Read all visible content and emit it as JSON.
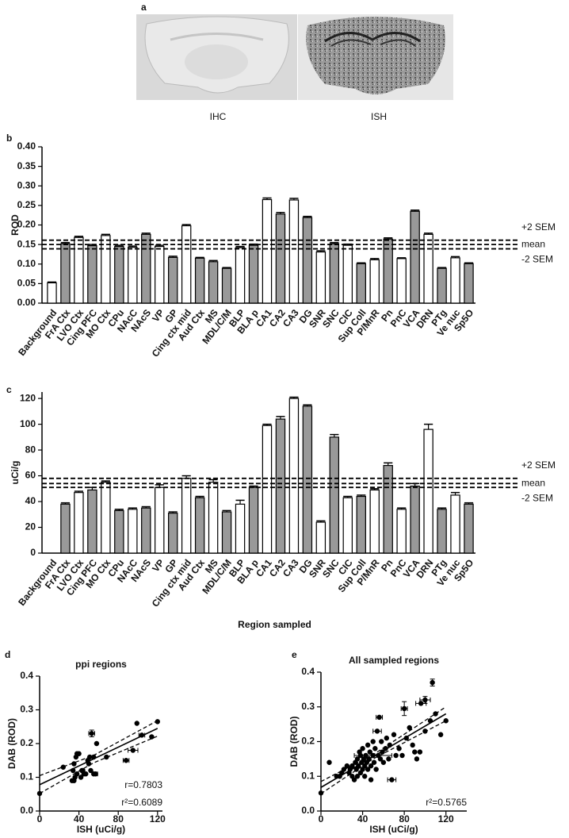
{
  "panel_a": {
    "label": "a",
    "captions": [
      "IHC",
      "ISH"
    ]
  },
  "chart_data": [
    {
      "type": "bar",
      "panel": "b",
      "ylabel": "ROD",
      "categories": [
        "Background",
        "FrA Ctx",
        "LVO Ctx",
        "Cing PFC",
        "MO Ctx",
        "CPu",
        "NAcC",
        "NAcS",
        "VP",
        "GP",
        "Cing ctx mid",
        "Aud Ctx",
        "MS",
        "MDL/C/M",
        "BLP",
        "BLA p",
        "CA1",
        "CA2",
        "CA3",
        "DG",
        "SNR",
        "SNC",
        "CIC",
        "Sup Coll",
        "P/MnR",
        "Pn",
        "PnC",
        "VCA",
        "DRN",
        "PTg",
        "Ve nuc",
        "Sp5O"
      ],
      "values": [
        0.052,
        0.152,
        0.168,
        0.147,
        0.173,
        0.145,
        0.143,
        0.176,
        0.145,
        0.117,
        0.198,
        0.115,
        0.106,
        0.089,
        0.142,
        0.148,
        0.265,
        0.228,
        0.264,
        0.219,
        0.131,
        0.152,
        0.148,
        0.101,
        0.111,
        0.164,
        0.114,
        0.235,
        0.176,
        0.089,
        0.116,
        0.101
      ],
      "errors": [
        0.002,
        0.003,
        0.003,
        0.003,
        0.003,
        0.003,
        0.003,
        0.003,
        0.003,
        0.003,
        0.003,
        0.002,
        0.003,
        0.002,
        0.003,
        0.003,
        0.004,
        0.004,
        0.004,
        0.003,
        0.003,
        0.003,
        0.003,
        0.002,
        0.003,
        0.003,
        0.002,
        0.003,
        0.003,
        0.002,
        0.003,
        0.002
      ],
      "colors": [
        "#ffffff",
        "#999999",
        "#ffffff",
        "#999999",
        "#ffffff",
        "#999999",
        "#ffffff",
        "#999999",
        "#ffffff",
        "#999999",
        "#ffffff",
        "#999999",
        "#999999",
        "#999999",
        "#ffffff",
        "#999999",
        "#ffffff",
        "#999999",
        "#ffffff",
        "#999999",
        "#ffffff",
        "#999999",
        "#ffffff",
        "#999999",
        "#ffffff",
        "#999999",
        "#ffffff",
        "#999999",
        "#ffffff",
        "#999999",
        "#ffffff",
        "#999999"
      ],
      "reference_lines": [
        {
          "label": "+2 SEM",
          "value": 0.161
        },
        {
          "label": "mean",
          "value": 0.15
        },
        {
          "label": "-2 SEM",
          "value": 0.139
        }
      ],
      "ylim": [
        0,
        0.4
      ],
      "yticks": [
        {
          "value": 0,
          "label": "0.00"
        },
        0.05,
        {
          "value": 0.1,
          "label": "0.10"
        },
        0.15,
        {
          "value": 0.2,
          "label": "0.20"
        },
        0.25,
        {
          "value": 0.3,
          "label": "0.30"
        },
        0.35,
        {
          "value": 0.4,
          "label": "0.40"
        }
      ]
    },
    {
      "type": "bar",
      "panel": "c",
      "ylabel": "uCi/g",
      "xlabel": "Region sampled",
      "categories": [
        "Background",
        "FrA Ctx",
        "LVO Ctx",
        "Cing PFC",
        "MO Ctx",
        "CPu",
        "NAcC",
        "NAcS",
        "VP",
        "GP",
        "Cing ctx mid",
        "Aud Ctx",
        "MS",
        "MDL/C/M",
        "BLP",
        "BLA p",
        "CA1",
        "CA2",
        "CA3",
        "DG",
        "SNR",
        "SNC",
        "CIC",
        "Sup Coll",
        "P/MnR",
        "Pn",
        "PnC",
        "VCA",
        "DRN",
        "PTg",
        "Ve nuc",
        "Sp5O"
      ],
      "values": [
        null,
        38,
        47,
        49,
        55,
        33,
        34,
        35,
        51,
        31,
        58,
        43,
        55,
        32,
        38,
        51,
        99,
        104,
        120,
        114,
        24,
        90,
        43,
        44,
        49,
        68,
        34,
        52,
        96,
        34,
        45,
        38
      ],
      "errors": [
        null,
        1,
        1,
        2,
        1,
        1,
        1,
        1,
        2,
        1,
        2,
        1,
        2,
        1,
        3,
        1,
        1,
        2,
        1,
        1,
        1,
        2,
        1,
        1,
        1,
        2,
        1,
        2,
        4,
        1,
        2,
        1
      ],
      "colors": [
        "#ffffff",
        "#999999",
        "#ffffff",
        "#999999",
        "#ffffff",
        "#999999",
        "#ffffff",
        "#999999",
        "#ffffff",
        "#999999",
        "#ffffff",
        "#999999",
        "#ffffff",
        "#999999",
        "#ffffff",
        "#999999",
        "#ffffff",
        "#999999",
        "#ffffff",
        "#999999",
        "#ffffff",
        "#999999",
        "#ffffff",
        "#999999",
        "#ffffff",
        "#999999",
        "#ffffff",
        "#999999",
        "#ffffff",
        "#999999",
        "#ffffff",
        "#999999"
      ],
      "reference_lines": [
        {
          "label": "+2 SEM",
          "value": 58
        },
        {
          "label": "mean",
          "value": 54
        },
        {
          "label": "-2 SEM",
          "value": 51
        }
      ],
      "ylim": [
        0,
        125
      ],
      "yticks": [
        0,
        20,
        40,
        60,
        80,
        100,
        120
      ]
    },
    {
      "type": "scatter",
      "panel": "d",
      "title": "ppi regions",
      "xlabel": "ISH (uCi/g)",
      "ylabel": "DAB (ROD)",
      "points": {
        "x": [
          0,
          24,
          33,
          34,
          35,
          35,
          36,
          37,
          38,
          38,
          40,
          42,
          43,
          44,
          45,
          47,
          49,
          50,
          51,
          52,
          55,
          55,
          58,
          68,
          99,
          114,
          120
        ],
        "y": [
          0.052,
          0.13,
          0.09,
          0.12,
          0.09,
          0.14,
          0.1,
          0.16,
          0.17,
          0.11,
          0.17,
          0.1,
          0.12,
          0.12,
          0.11,
          0.11,
          0.15,
          0.14,
          0.16,
          0.12,
          0.11,
          0.16,
          0.2,
          0.16,
          0.26,
          0.22,
          0.265
        ]
      },
      "points_with_errors": {
        "x": [
          53,
          57,
          88,
          95,
          104
        ],
        "y": [
          0.23,
          0.11,
          0.15,
          0.18,
          0.225
        ],
        "xerr": [
          3,
          2,
          3,
          5,
          3
        ],
        "yerr": [
          0.01,
          null,
          null,
          null,
          null
        ]
      },
      "fit": {
        "x": [
          0,
          120
        ],
        "y": [
          0.078,
          0.245
        ]
      },
      "ci_upper": {
        "x": [
          0,
          55,
          120
        ],
        "y": [
          0.105,
          0.165,
          0.268
        ]
      },
      "ci_lower": {
        "x": [
          0,
          55,
          120
        ],
        "y": [
          0.052,
          0.143,
          0.222
        ]
      },
      "annotations": [
        "r=0.7803",
        "r²=0.6089"
      ],
      "xlim": [
        0,
        125
      ],
      "xticks": [
        0,
        40,
        80,
        120
      ],
      "ylim": [
        0,
        0.4
      ],
      "yticks": [
        {
          "value": 0,
          "label": "0.0"
        },
        0.1,
        0.2,
        0.3,
        0.4
      ]
    },
    {
      "type": "scatter",
      "panel": "e",
      "title": "All sampled regions",
      "xlabel": "ISH (uCi/g)",
      "ylabel": "DAB (ROD)",
      "points": {
        "x": [
          0,
          8,
          15,
          18,
          20,
          22,
          25,
          27,
          28,
          30,
          30,
          32,
          33,
          34,
          35,
          35,
          36,
          37,
          38,
          38,
          39,
          40,
          40,
          41,
          42,
          42,
          43,
          44,
          45,
          45,
          46,
          47,
          48,
          48,
          50,
          51,
          52,
          53,
          55,
          57,
          58,
          59,
          60,
          62,
          63,
          65,
          66,
          70,
          72,
          75,
          78,
          82,
          85,
          88,
          90,
          92,
          95,
          100,
          105,
          110,
          115,
          120
        ],
        "y": [
          0.052,
          0.14,
          0.1,
          0.1,
          0.11,
          0.12,
          0.13,
          0.11,
          0.12,
          0.13,
          0.1,
          0.09,
          0.14,
          0.12,
          0.15,
          0.1,
          0.13,
          0.17,
          0.11,
          0.16,
          0.14,
          0.12,
          0.18,
          0.15,
          0.13,
          0.1,
          0.16,
          0.14,
          0.12,
          0.19,
          0.15,
          0.17,
          0.13,
          0.09,
          0.2,
          0.14,
          0.18,
          0.12,
          0.16,
          0.15,
          0.2,
          0.17,
          0.14,
          0.18,
          0.21,
          0.15,
          0.19,
          0.22,
          0.16,
          0.18,
          0.16,
          0.21,
          0.24,
          0.19,
          0.17,
          0.15,
          0.17,
          0.23,
          0.26,
          0.28,
          0.22,
          0.26
        ]
      },
      "points_with_errors": {
        "x": [
          50,
          54,
          56,
          68,
          80,
          96,
          100,
          107
        ],
        "y": [
          0.16,
          0.23,
          0.27,
          0.09,
          0.295,
          0.31,
          0.32,
          0.37
        ],
        "xerr": [
          18,
          4,
          3,
          4,
          3,
          5,
          5,
          null
        ],
        "yerr": [
          null,
          null,
          null,
          null,
          0.02,
          null,
          0.01,
          0.01
        ]
      },
      "fit": {
        "x": [
          0,
          120
        ],
        "y": [
          0.068,
          0.28
        ]
      },
      "ci_upper": {
        "x": [
          0,
          50,
          120
        ],
        "y": [
          0.085,
          0.162,
          0.3
        ]
      },
      "ci_lower": {
        "x": [
          0,
          50,
          120
        ],
        "y": [
          0.05,
          0.15,
          0.26
        ]
      },
      "annotations": [
        "r²=0.5765"
      ],
      "xlim": [
        0,
        140
      ],
      "xticks": [
        0,
        40,
        80,
        120
      ],
      "ylim": [
        0,
        0.4
      ],
      "yticks": [
        {
          "value": 0,
          "label": "0.0"
        },
        0.1,
        0.2,
        0.3,
        0.4
      ]
    }
  ]
}
